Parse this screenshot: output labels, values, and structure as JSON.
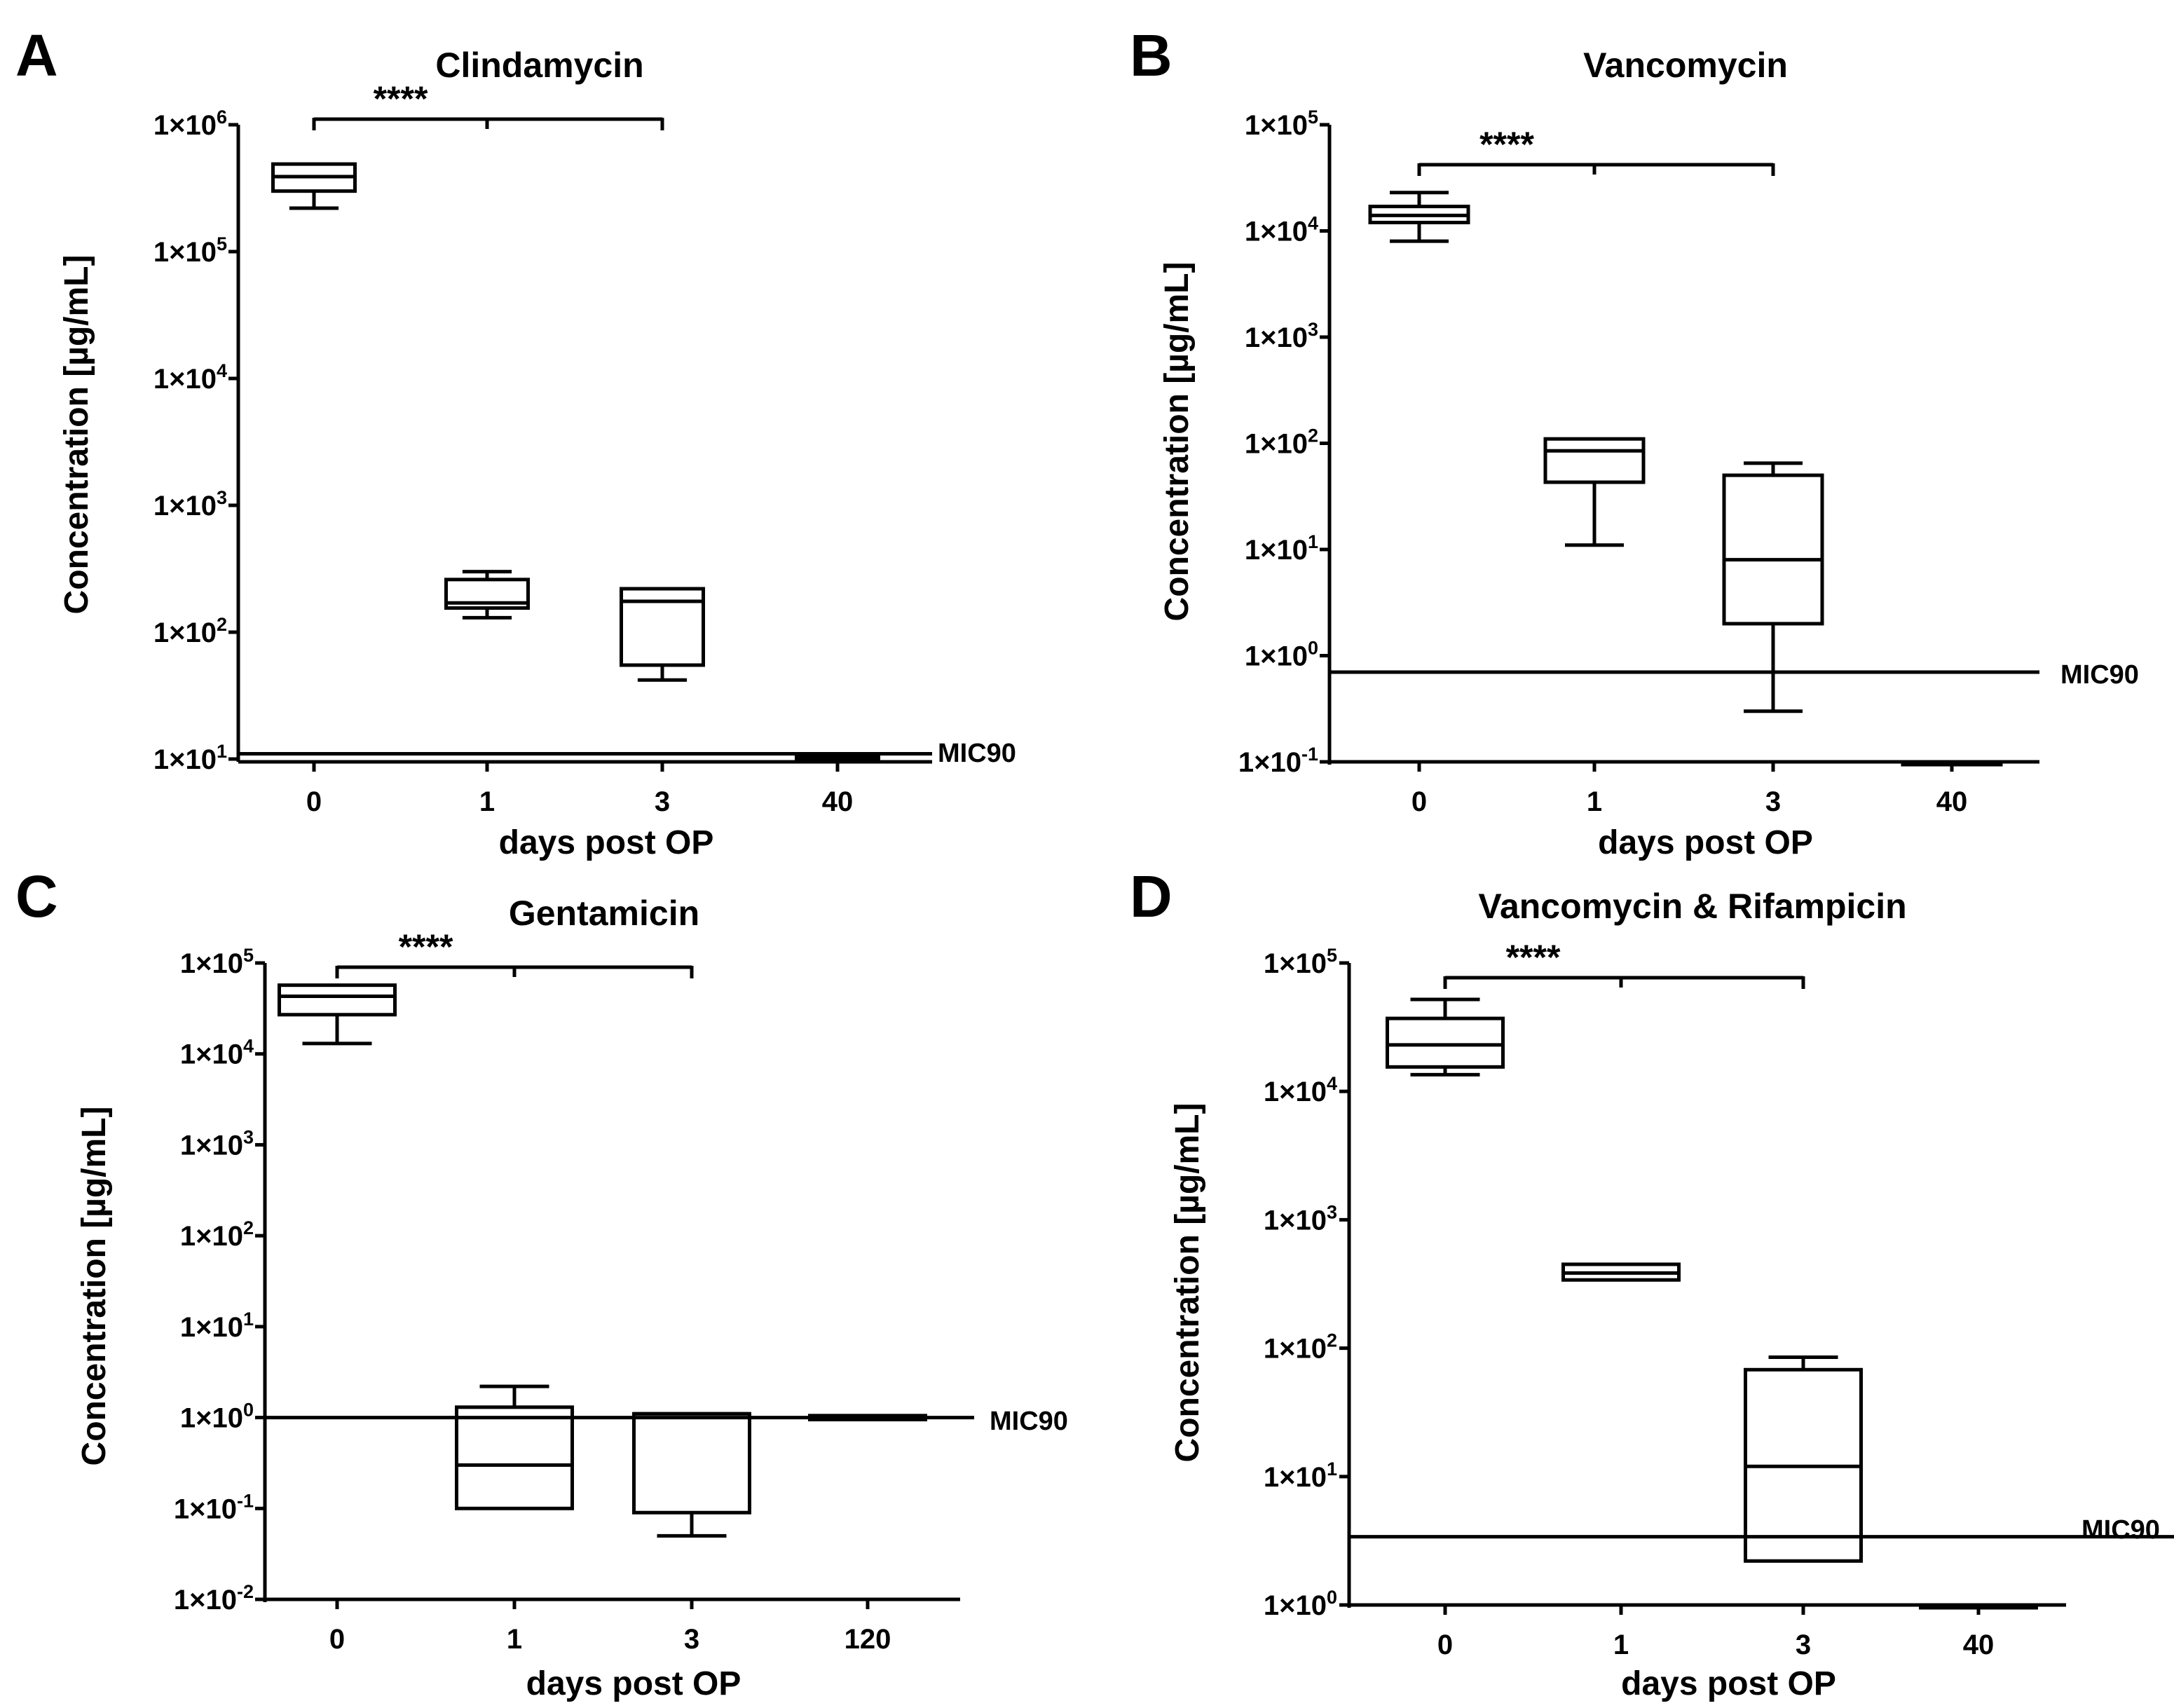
{
  "figure": {
    "x_axis_label": "days post OP",
    "y_axis_label": "Concentration [µg/mL]",
    "mic_label": "MIC90",
    "significance_label": "****"
  },
  "chart_data": [
    {
      "panel": "A",
      "type": "boxplot",
      "title": "Clindamycin",
      "xlabel": "days post OP",
      "ylabel": "Concentration [µg/mL]",
      "yscale": "log10",
      "ylim": [
        10,
        1000000
      ],
      "yticks": [
        {
          "mantissa": "1×10",
          "exp": "1"
        },
        {
          "mantissa": "1×10",
          "exp": "2"
        },
        {
          "mantissa": "1×10",
          "exp": "3"
        },
        {
          "mantissa": "1×10",
          "exp": "4"
        },
        {
          "mantissa": "1×10",
          "exp": "5"
        },
        {
          "mantissa": "1×10",
          "exp": "6"
        }
      ],
      "categories": [
        "0",
        "1",
        "3",
        "40"
      ],
      "boxes": [
        {
          "min": 220000,
          "q1": 300000,
          "median": 390000,
          "q3": 490000,
          "max": 490000
        },
        {
          "min": 130.0,
          "q1": 155,
          "median": 170,
          "q3": 260,
          "max": 300
        },
        {
          "min": 42,
          "q1": 55,
          "median": 175,
          "q3": 220,
          "max": 220
        },
        {
          "min": 10,
          "q1": 10,
          "median": 10,
          "q3": 10.4,
          "max": 10.4
        }
      ],
      "mic90": 11,
      "significance": {
        "label": "****",
        "from": "0",
        "to": "3"
      }
    },
    {
      "panel": "B",
      "type": "boxplot",
      "title": "Vancomycin",
      "xlabel": "days post OP",
      "ylabel": "Concentration [µg/mL]",
      "yscale": "log10",
      "ylim": [
        0.1,
        100000
      ],
      "yticks": [
        {
          "mantissa": "1×10",
          "exp": "-1"
        },
        {
          "mantissa": "1×10",
          "exp": "0"
        },
        {
          "mantissa": "1×10",
          "exp": "1"
        },
        {
          "mantissa": "1×10",
          "exp": "2"
        },
        {
          "mantissa": "1×10",
          "exp": "3"
        },
        {
          "mantissa": "1×10",
          "exp": "4"
        },
        {
          "mantissa": "1×10",
          "exp": "5"
        }
      ],
      "categories": [
        "0",
        "1",
        "3",
        "40"
      ],
      "boxes": [
        {
          "min": 8000,
          "q1": 12000,
          "median": 14000,
          "q3": 17000,
          "max": 23000
        },
        {
          "min": 11,
          "q1": 43,
          "median": 85,
          "q3": 110,
          "max": 110
        },
        {
          "min": 0.3,
          "q1": 2,
          "median": 8,
          "q3": 50,
          "max": 65
        },
        {
          "min": 0.1,
          "q1": 0.1,
          "median": 0.1,
          "q3": 0.1,
          "max": 0.1
        }
      ],
      "mic90": 0.7,
      "significance": {
        "label": "****",
        "from": "0",
        "to": "3"
      }
    },
    {
      "panel": "C",
      "type": "boxplot",
      "title": "Gentamicin",
      "xlabel": "days post OP",
      "ylabel": "Concentration [µg/mL]",
      "yscale": "log10",
      "ylim": [
        0.01,
        100000
      ],
      "yticks": [
        {
          "mantissa": "1×10",
          "exp": "-2"
        },
        {
          "mantissa": "1×10",
          "exp": "-1"
        },
        {
          "mantissa": "1×10",
          "exp": "0"
        },
        {
          "mantissa": "1×10",
          "exp": "1"
        },
        {
          "mantissa": "1×10",
          "exp": "2"
        },
        {
          "mantissa": "1×10",
          "exp": "3"
        },
        {
          "mantissa": "1×10",
          "exp": "4"
        },
        {
          "mantissa": "1×10",
          "exp": "5"
        }
      ],
      "categories": [
        "0",
        "1",
        "3",
        "120"
      ],
      "boxes": [
        {
          "min": 13000,
          "q1": 27000,
          "median": 43000,
          "q3": 57000,
          "max": 57000
        },
        {
          "min": 0.1,
          "q1": 0.1,
          "median": 0.3,
          "q3": 1.3,
          "max": 2.2
        },
        {
          "min": 0.05,
          "q1": 0.09,
          "median": 1.1,
          "q3": 1.1,
          "max": 1.1
        },
        {
          "min": 0.95,
          "q1": 0.95,
          "median": 1.0,
          "q3": 1.05,
          "max": 1.05
        }
      ],
      "mic90": 1.0,
      "significance": {
        "label": "****",
        "from": "0",
        "to": "3"
      }
    },
    {
      "panel": "D",
      "type": "boxplot",
      "title": "Vancomycin & Rifampicin",
      "xlabel": "days post OP",
      "ylabel": "Concentration [µg/mL]",
      "yscale": "log10",
      "ylim": [
        1,
        100000
      ],
      "yticks": [
        {
          "mantissa": "1×10",
          "exp": "0"
        },
        {
          "mantissa": "1×10",
          "exp": "1"
        },
        {
          "mantissa": "1×10",
          "exp": "2"
        },
        {
          "mantissa": "1×10",
          "exp": "3"
        },
        {
          "mantissa": "1×10",
          "exp": "4"
        },
        {
          "mantissa": "1×10",
          "exp": "5"
        }
      ],
      "categories": [
        "0",
        "1",
        "3",
        "40"
      ],
      "boxes": [
        {
          "min": 13500,
          "q1": 15500,
          "median": 23000,
          "q3": 37000,
          "max": 52000
        },
        {
          "min": 340,
          "q1": 340,
          "median": 385,
          "q3": 450,
          "max": 450
        },
        {
          "min": 2.2,
          "q1": 2.2,
          "median": 12,
          "q3": 68,
          "max": 85
        },
        {
          "min": 1,
          "q1": 1,
          "median": 1,
          "q3": 1,
          "max": 1
        }
      ],
      "mic90": 3.4,
      "significance": {
        "label": "****",
        "from": "0",
        "to": "3"
      }
    }
  ]
}
